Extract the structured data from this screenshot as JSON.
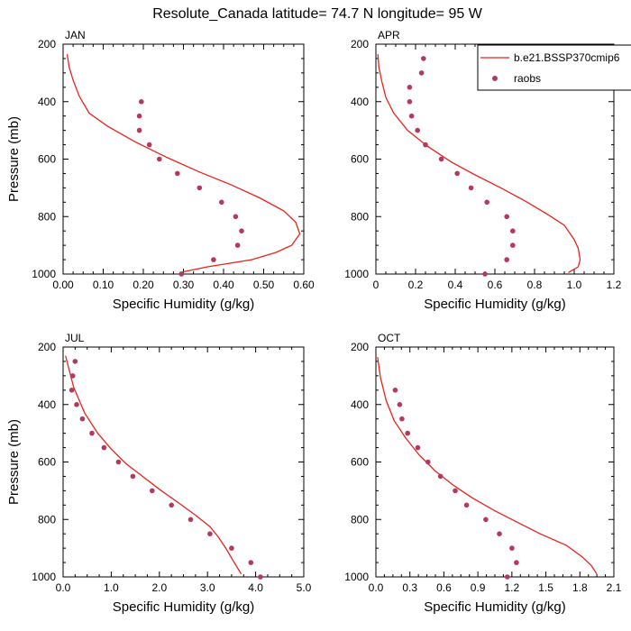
{
  "figure": {
    "title": "Resolute_Canada  latitude= 74.7 N longitude= 95 W"
  },
  "legend": {
    "model_label": "b.e21.BSSP370cmip6",
    "obs_label": "raobs",
    "model_color": "#e8221b",
    "obs_color": "#b23a5c",
    "placement": "top-right of APR panel"
  },
  "chart_data": [
    {
      "type": "line",
      "title": "JAN",
      "xlabel": "Specific Humidity (g/kg)",
      "ylabel": "Pressure (mb)",
      "xlim": [
        0,
        0.6
      ],
      "ylim": [
        1000,
        200
      ],
      "y_inverted": true,
      "xticks": [
        "0.00",
        "0.10",
        "0.20",
        "0.30",
        "0.40",
        "0.50",
        "0.60"
      ],
      "yticks": [
        "200",
        "400",
        "600",
        "800",
        "1000"
      ],
      "series": [
        {
          "name": "b.e21.BSSP370cmip6",
          "kind": "line",
          "x": [
            0.29,
            0.36,
            0.47,
            0.53,
            0.57,
            0.59,
            0.58,
            0.55,
            0.49,
            0.42,
            0.34,
            0.26,
            0.18,
            0.11,
            0.065,
            0.04,
            0.025,
            0.015,
            0.01
          ],
          "y": [
            995,
            975,
            950,
            925,
            900,
            860,
            820,
            780,
            735,
            690,
            645,
            595,
            540,
            485,
            440,
            380,
            325,
            280,
            235
          ]
        },
        {
          "name": "raobs",
          "kind": "scatter",
          "x": [
            0.295,
            0.375,
            0.435,
            0.445,
            0.43,
            0.395,
            0.34,
            0.285,
            0.24,
            0.215,
            0.19,
            0.19,
            0.195
          ],
          "y": [
            1000,
            950,
            900,
            850,
            800,
            750,
            700,
            650,
            600,
            550,
            500,
            450,
            400
          ]
        }
      ]
    },
    {
      "type": "line",
      "title": "APR",
      "xlabel": "Specific Humidity (g/kg)",
      "ylabel": "",
      "xlim": [
        0,
        1.2
      ],
      "ylim": [
        1000,
        200
      ],
      "y_inverted": true,
      "xticks": [
        "0",
        "0.2",
        "0.4",
        "0.6",
        "0.8",
        "1.0",
        "1.2"
      ],
      "yticks": [
        "200",
        "400",
        "600",
        "800",
        "1000"
      ],
      "series": [
        {
          "name": "b.e21.BSSP370cmip6",
          "kind": "line",
          "x": [
            0.97,
            1.02,
            1.03,
            1.02,
            1.0,
            0.95,
            0.86,
            0.75,
            0.63,
            0.5,
            0.38,
            0.26,
            0.16,
            0.09,
            0.05,
            0.03,
            0.015,
            0.01
          ],
          "y": [
            995,
            975,
            950,
            910,
            880,
            830,
            790,
            745,
            700,
            655,
            610,
            555,
            500,
            440,
            385,
            330,
            280,
            235
          ]
        },
        {
          "name": "raobs",
          "kind": "scatter",
          "x": [
            0.55,
            0.66,
            0.69,
            0.69,
            0.66,
            0.56,
            0.48,
            0.41,
            0.33,
            0.25,
            0.21,
            0.18,
            0.17,
            0.17,
            0.23,
            0.24
          ],
          "y": [
            1000,
            950,
            900,
            850,
            800,
            750,
            700,
            650,
            600,
            550,
            500,
            450,
            400,
            350,
            300,
            250
          ]
        }
      ]
    },
    {
      "type": "line",
      "title": "JUL",
      "xlabel": "Specific Humidity (g/kg)",
      "ylabel": "Pressure (mb)",
      "xlim": [
        0,
        5.0
      ],
      "ylim": [
        1000,
        200
      ],
      "y_inverted": true,
      "xticks": [
        "0.0",
        "1.0",
        "2.0",
        "3.0",
        "4.0",
        "5.0"
      ],
      "yticks": [
        "200",
        "400",
        "600",
        "800",
        "1000"
      ],
      "series": [
        {
          "name": "b.e21.BSSP370cmip6",
          "kind": "line",
          "x": [
            3.7,
            3.52,
            3.38,
            3.22,
            3.05,
            2.75,
            2.38,
            2.0,
            1.65,
            1.3,
            1.0,
            0.72,
            0.45,
            0.22,
            0.05
          ],
          "y": [
            990,
            940,
            900,
            860,
            825,
            785,
            740,
            695,
            650,
            605,
            555,
            500,
            430,
            340,
            230
          ]
        },
        {
          "name": "raobs",
          "kind": "scatter",
          "x": [
            4.1,
            3.9,
            3.5,
            3.05,
            2.65,
            2.25,
            1.85,
            1.45,
            1.15,
            0.85,
            0.6,
            0.4,
            0.28,
            0.18,
            0.2,
            0.25
          ],
          "y": [
            1000,
            950,
            900,
            850,
            800,
            750,
            700,
            650,
            600,
            550,
            500,
            450,
            400,
            350,
            300,
            250
          ]
        }
      ]
    },
    {
      "type": "line",
      "title": "OCT",
      "xlabel": "Specific Humidity (g/kg)",
      "ylabel": "",
      "xlim": [
        0,
        2.1
      ],
      "ylim": [
        1000,
        200
      ],
      "y_inverted": true,
      "xticks": [
        "0.0",
        "0.3",
        "0.6",
        "0.9",
        "1.2",
        "1.5",
        "1.8",
        "2.1"
      ],
      "yticks": [
        "200",
        "400",
        "600",
        "800",
        "1000"
      ],
      "series": [
        {
          "name": "b.e21.BSSP370cmip6",
          "kind": "line",
          "x": [
            1.95,
            1.9,
            1.82,
            1.68,
            1.45,
            1.25,
            1.05,
            0.85,
            0.68,
            0.52,
            0.38,
            0.26,
            0.16,
            0.09,
            0.04,
            0.015
          ],
          "y": [
            990,
            960,
            930,
            890,
            850,
            810,
            770,
            725,
            680,
            630,
            575,
            515,
            455,
            385,
            305,
            235
          ]
        },
        {
          "name": "raobs",
          "kind": "scatter",
          "x": [
            1.16,
            1.24,
            1.2,
            1.09,
            0.97,
            0.8,
            0.7,
            0.57,
            0.46,
            0.37,
            0.28,
            0.23,
            0.21,
            0.17
          ],
          "y": [
            1000,
            950,
            900,
            850,
            800,
            750,
            700,
            650,
            600,
            550,
            500,
            450,
            400,
            350
          ]
        }
      ]
    }
  ]
}
